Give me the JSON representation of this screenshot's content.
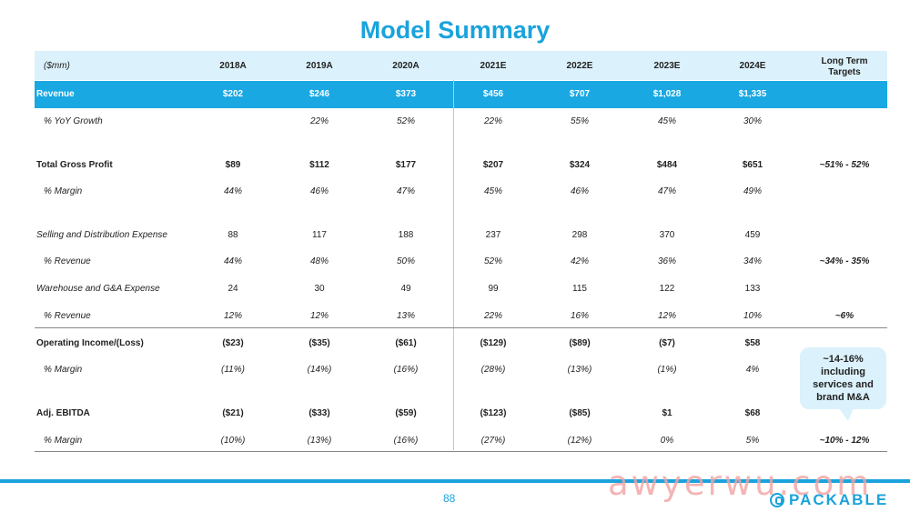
{
  "title": "Model Summary",
  "header": {
    "unit_label": "($mm)",
    "years": [
      "2018A",
      "2019A",
      "2020A",
      "2021E",
      "2022E",
      "2023E",
      "2024E"
    ],
    "long_term": "Long Term\nTargets"
  },
  "rows": {
    "revenue": {
      "label": "Revenue",
      "values": [
        "$202",
        "$246",
        "$373",
        "$456",
        "$707",
        "$1,028",
        "$1,335"
      ],
      "target": ""
    },
    "revenue_growth": {
      "label": "% YoY Growth",
      "values": [
        "",
        "22%",
        "52%",
        "22%",
        "55%",
        "45%",
        "30%"
      ],
      "target": ""
    },
    "gross_profit": {
      "label": "Total Gross Profit",
      "values": [
        "$89",
        "$112",
        "$177",
        "$207",
        "$324",
        "$484",
        "$651"
      ],
      "target": "~51% - 52%"
    },
    "gross_margin": {
      "label": "% Margin",
      "values": [
        "44%",
        "46%",
        "47%",
        "45%",
        "46%",
        "47%",
        "49%"
      ],
      "target": ""
    },
    "selling": {
      "label": "Selling and Distribution Expense",
      "values": [
        "88",
        "117",
        "188",
        "237",
        "298",
        "370",
        "459"
      ],
      "target": ""
    },
    "selling_pct": {
      "label": "% Revenue",
      "values": [
        "44%",
        "48%",
        "50%",
        "52%",
        "42%",
        "36%",
        "34%"
      ],
      "target": "~34% - 35%"
    },
    "warehouse": {
      "label": "Warehouse and G&A Expense",
      "values": [
        "24",
        "30",
        "49",
        "99",
        "115",
        "122",
        "133"
      ],
      "target": ""
    },
    "warehouse_pct": {
      "label": "% Revenue",
      "values": [
        "12%",
        "12%",
        "13%",
        "22%",
        "16%",
        "12%",
        "10%"
      ],
      "target": "~6%"
    },
    "op_income": {
      "label": "Operating Income/(Loss)",
      "values": [
        "($23)",
        "($35)",
        "($61)",
        "($129)",
        "($89)",
        "($7)",
        "$58"
      ],
      "target": ""
    },
    "op_margin": {
      "label": "% Margin",
      "values": [
        "(11%)",
        "(14%)",
        "(16%)",
        "(28%)",
        "(13%)",
        "(1%)",
        "4%"
      ],
      "target": ""
    },
    "ebitda": {
      "label": "Adj. EBITDA",
      "values": [
        "($21)",
        "($33)",
        "($59)",
        "($123)",
        "($85)",
        "$1",
        "$68"
      ],
      "target": ""
    },
    "ebitda_margin": {
      "label": "% Margin",
      "values": [
        "(10%)",
        "(13%)",
        "(16%)",
        "(27%)",
        "(12%)",
        "0%",
        "5%"
      ],
      "target": "~10% - 12%"
    }
  },
  "callout": "~14-16%\nincluding\nservices and\nbrand M&A",
  "footer": {
    "page": "88",
    "brand": "PACKABLE",
    "watermark": "awyerwu.com"
  },
  "colors": {
    "accent": "#1aa3dc",
    "header_bg": "#dbf1fb",
    "revenue_bg": "#1aa8e3"
  }
}
